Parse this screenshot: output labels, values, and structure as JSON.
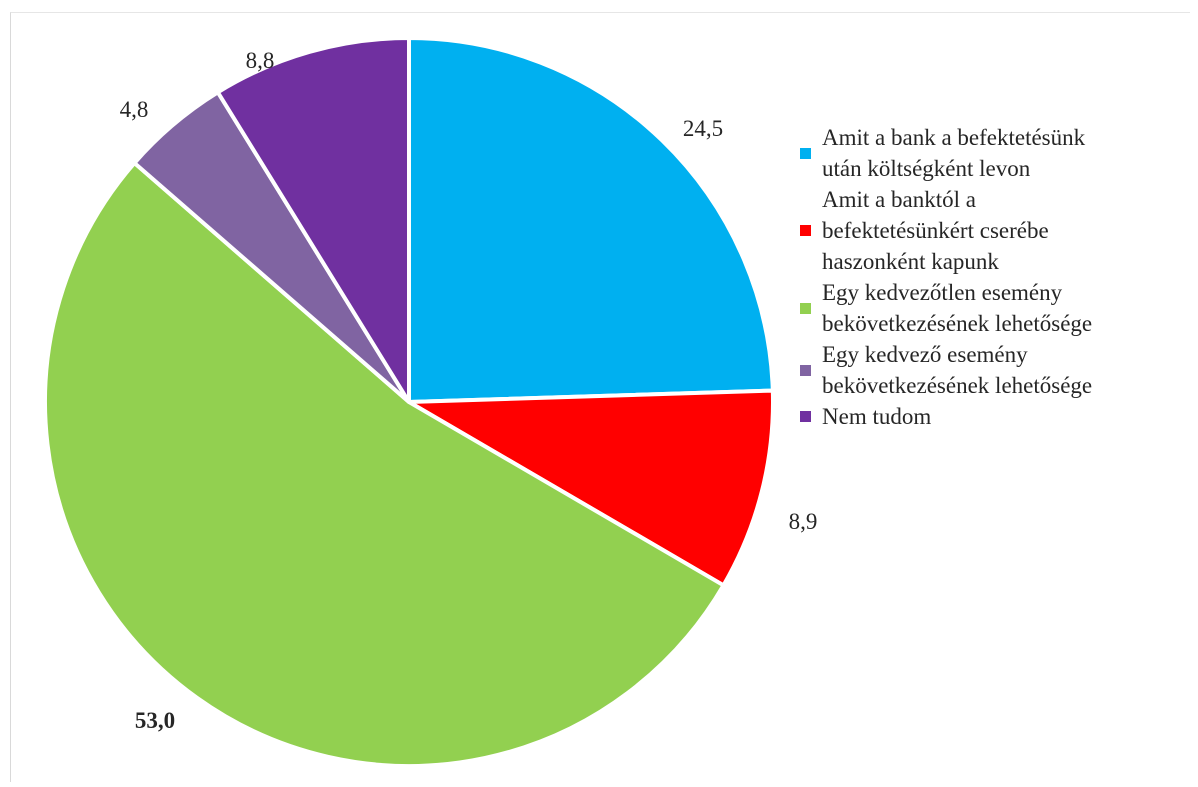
{
  "chart_data": {
    "type": "pie",
    "slices": [
      {
        "label": "Amit a bank a befektetésünk\nután költségként levon",
        "value": 24.5,
        "display": "24,5",
        "color": "#00B0F0"
      },
      {
        "label": "Amit a banktól a\nbefektetésünkért cserébe\nhaszonként kapunk",
        "value": 8.9,
        "display": "8,9",
        "color": "#FF0000"
      },
      {
        "label": "Egy kedvezőtlen esemény\nbekövetkezésének lehetősége",
        "value": 53.0,
        "display": "53,0",
        "color": "#92D050"
      },
      {
        "label": "Egy kedvező esemény\nbekövetkezésének lehetősége",
        "value": 4.8,
        "display": "4,8",
        "color": "#8064A2"
      },
      {
        "label": "Nem tudom",
        "value": 8.8,
        "display": "8,8",
        "color": "#7030A0"
      }
    ],
    "legend_position": "right"
  }
}
